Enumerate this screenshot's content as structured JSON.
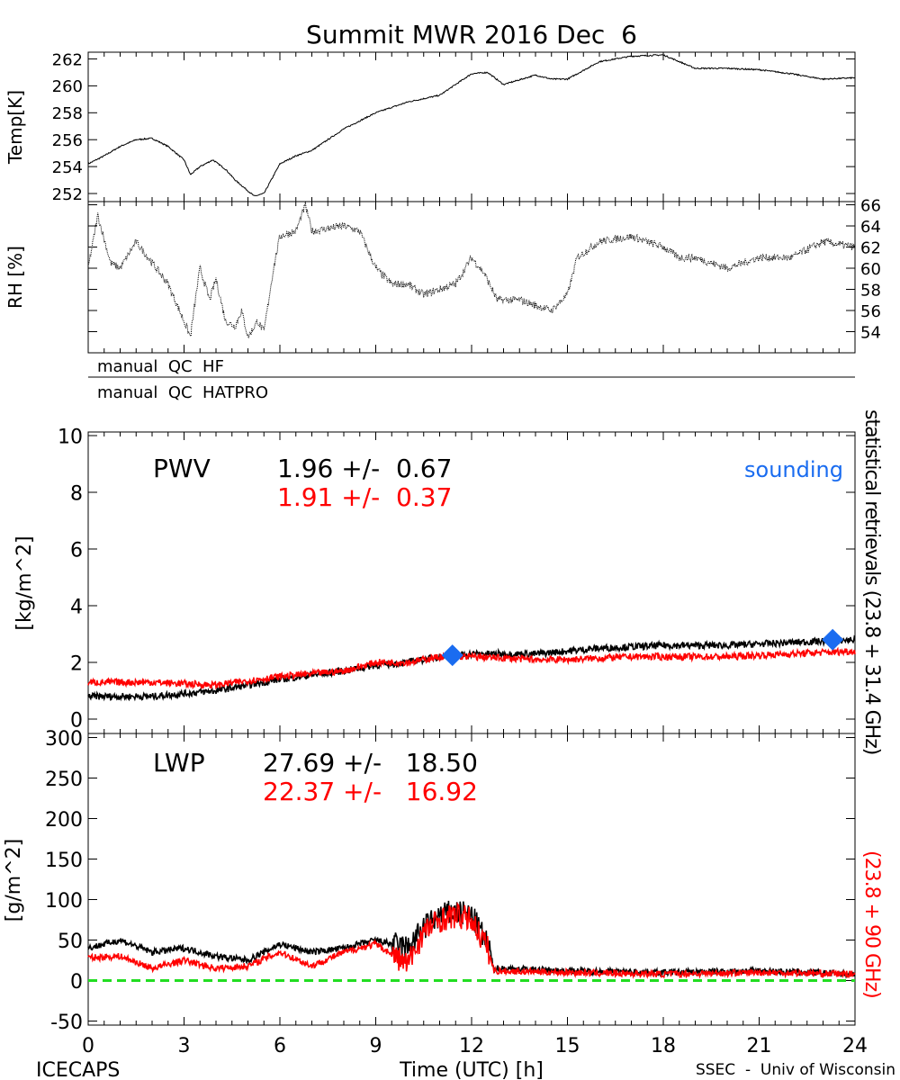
{
  "chart_data": [
    {
      "type": "line",
      "title": "Summit MWR 2016 Dec  6",
      "ylabel": "Temp[K]",
      "xlim": [
        0,
        24
      ],
      "ylim": [
        251.4,
        262.5
      ],
      "yticks": [
        252,
        254,
        256,
        258,
        260,
        262
      ],
      "series": [
        {
          "name": "Temp",
          "color": "#000000",
          "x": [
            0,
            0.5,
            1,
            1.5,
            2,
            2.5,
            3,
            3.2,
            3.5,
            3.9,
            4.3,
            4.6,
            5,
            5.2,
            5.5,
            6,
            6.5,
            7,
            8,
            9,
            10,
            11,
            12,
            12.5,
            13,
            14,
            14.5,
            15,
            16,
            17,
            18,
            19,
            20,
            21,
            22,
            23,
            24
          ],
          "y": [
            254.2,
            254.8,
            255.5,
            256.0,
            256.1,
            255.5,
            254.5,
            253.4,
            254.0,
            254.5,
            253.8,
            253.0,
            252.2,
            251.8,
            252.0,
            254.2,
            254.8,
            255.2,
            256.8,
            258.0,
            258.8,
            259.3,
            260.9,
            261.0,
            260.1,
            260.8,
            260.5,
            260.5,
            261.8,
            262.2,
            262.3,
            261.3,
            261.3,
            261.2,
            260.9,
            260.5,
            260.6
          ]
        }
      ]
    },
    {
      "type": "scatter",
      "ylabel": "RH [%]",
      "xlim": [
        0,
        24
      ],
      "ylim": [
        52,
        66.3
      ],
      "yticks": [
        54,
        56,
        58,
        60,
        62,
        64,
        66
      ],
      "yaxis_side": "right",
      "series": [
        {
          "name": "RH",
          "color": "#000000",
          "x": [
            0,
            0.3,
            0.7,
            1,
            1.5,
            2,
            2.5,
            3,
            3.2,
            3.4,
            3.5,
            3.8,
            4,
            4.3,
            4.6,
            4.8,
            5,
            5.3,
            5.5,
            5.6,
            5.8,
            6,
            6.5,
            6.8,
            7,
            8,
            8.5,
            9,
            9.5,
            10,
            10.5,
            11,
            11.5,
            12,
            12.4,
            12.8,
            13.5,
            14,
            14.5,
            15,
            15.3,
            16,
            17,
            18,
            18.5,
            19,
            20,
            21,
            22,
            23,
            24
          ],
          "y": [
            60,
            65,
            60.5,
            60,
            62.5,
            60.5,
            58.5,
            55,
            53.5,
            58,
            60,
            57,
            59,
            55,
            54.5,
            56,
            53.5,
            55,
            54,
            56,
            60,
            63,
            63.5,
            66,
            63.5,
            64,
            63.5,
            60,
            58.5,
            58.5,
            57.5,
            58,
            58.5,
            61,
            59.5,
            57,
            57,
            56.5,
            56,
            57.5,
            61,
            62.5,
            63,
            62,
            61,
            61,
            60,
            61,
            61,
            62.5,
            62
          ]
        }
      ]
    },
    {
      "type": "line",
      "label": "PWV",
      "ylabel": "[kg/m^2]",
      "xlim": [
        0,
        24
      ],
      "ylim": [
        0,
        10
      ],
      "yticks": [
        0,
        2,
        4,
        6,
        8,
        10
      ],
      "annotations": [
        {
          "text": "1.96 +/-  0.67",
          "color": "#000000"
        },
        {
          "text": "1.91 +/-  0.37",
          "color": "#ff0000"
        },
        {
          "text": "sounding",
          "color": "#1a6cf0"
        }
      ],
      "series": [
        {
          "name": "statistical retrievals (23.8 + 31.4 GHz)",
          "color": "#000000",
          "x": [
            0,
            2,
            4,
            5,
            6,
            8,
            9,
            10,
            11,
            12,
            14,
            15,
            16,
            18,
            20,
            22,
            24
          ],
          "y": [
            0.8,
            0.8,
            1.0,
            1.2,
            1.4,
            1.7,
            1.9,
            2.0,
            2.2,
            2.3,
            2.3,
            2.4,
            2.5,
            2.6,
            2.6,
            2.7,
            2.8
          ]
        },
        {
          "name": "(23.8 + 90 GHz)",
          "color": "#ff0000",
          "x": [
            0,
            2,
            4,
            6,
            8,
            9,
            10,
            11,
            12,
            14,
            15,
            17,
            20,
            22,
            24
          ],
          "y": [
            1.3,
            1.3,
            1.2,
            1.5,
            1.7,
            2.0,
            2.0,
            2.2,
            2.2,
            2.1,
            2.1,
            2.2,
            2.2,
            2.3,
            2.4
          ]
        },
        {
          "name": "sounding",
          "color": "#1a6cf0",
          "marker": "diamond",
          "x": [
            11.4,
            23.3
          ],
          "y": [
            2.25,
            2.8
          ]
        }
      ]
    },
    {
      "type": "line",
      "label": "LWP",
      "ylabel": "[g/m^2]",
      "xlabel": "Time (UTC) [h]",
      "xlim": [
        0,
        24
      ],
      "ylim": [
        -55,
        305
      ],
      "xticks": [
        0,
        3,
        6,
        9,
        12,
        15,
        18,
        21,
        24
      ],
      "yticks": [
        -50,
        0,
        50,
        100,
        150,
        200,
        250,
        300
      ],
      "annotations": [
        {
          "text": "27.69 +/-   18.50",
          "color": "#000000"
        },
        {
          "text": "22.37 +/-   16.92",
          "color": "#ff0000"
        }
      ],
      "series": [
        {
          "name": "statistical retrievals (23.8 + 31.4 GHz)",
          "color": "#000000",
          "x": [
            0,
            1,
            2,
            3,
            4,
            5,
            5.5,
            6,
            7,
            8,
            9,
            10,
            10.5,
            11,
            11.5,
            12,
            12.5,
            12.7,
            13,
            15,
            18,
            21,
            24
          ],
          "y": [
            40,
            50,
            35,
            40,
            30,
            25,
            35,
            45,
            35,
            40,
            50,
            40,
            65,
            80,
            85,
            80,
            45,
            15,
            15,
            12,
            10,
            12,
            8
          ]
        },
        {
          "name": "(23.8 + 90 GHz)",
          "color": "#ff0000",
          "x": [
            0,
            1,
            2,
            3,
            4,
            5,
            6,
            7,
            8,
            9,
            10,
            10.5,
            11,
            11.5,
            12,
            12.5,
            12.7,
            15,
            18,
            21,
            24
          ],
          "y": [
            28,
            30,
            15,
            25,
            15,
            18,
            35,
            18,
            35,
            45,
            20,
            60,
            75,
            80,
            75,
            40,
            12,
            10,
            8,
            10,
            8
          ]
        },
        {
          "name": "zero line",
          "color": "#22dd22",
          "style": "dashed",
          "x": [
            0,
            24
          ],
          "y": [
            0,
            0
          ]
        }
      ]
    }
  ],
  "qc": [
    "manual  QC  HF",
    "manual  QC  HATPRO"
  ],
  "right_label_black": "statistical  retrievals  (23.8  +  31.4  GHz)",
  "right_label_red": "(23.8  +  90  GHz)",
  "footer": {
    "left": "ICECAPS",
    "right": "SSEC  -  Univ of Wisconsin"
  }
}
